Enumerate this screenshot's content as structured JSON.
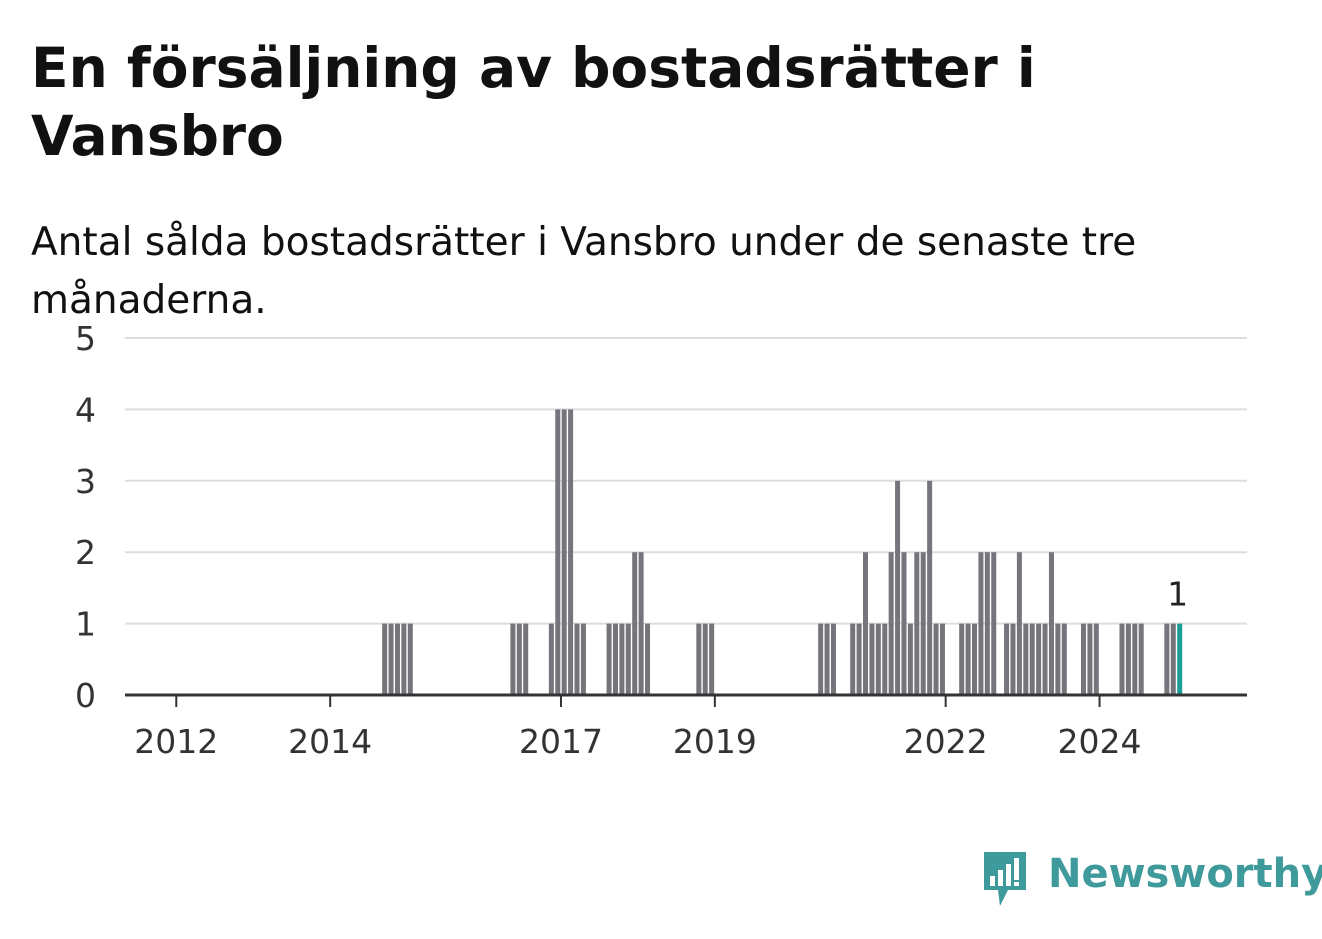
{
  "title": "En försäljning av bostadsrätter i Vansbro",
  "subtitle": "Antal sålda bostadsrätter i Vansbro under de senaste tre månaderna.",
  "brand": {
    "name": "Newsworthy",
    "color": "#3f9a9b",
    "icon": "newsworthy-logo-icon"
  },
  "colors": {
    "bar": "#76757b",
    "highlight": "#1a9e96",
    "grid": "#dddddd",
    "axis": "#333333"
  },
  "chart_data": {
    "type": "bar",
    "xlabel": "",
    "ylabel": "",
    "ylim": [
      0,
      5
    ],
    "y_ticks": [
      0,
      1,
      2,
      3,
      4,
      5
    ],
    "x_ticks": [
      "2012",
      "2014",
      "2017",
      "2019",
      "2022",
      "2024"
    ],
    "x_tick_dates": [
      "2012-01",
      "2014-01",
      "2017-01",
      "2019-01",
      "2022-01",
      "2024-01"
    ],
    "x_range": [
      "2011-05",
      "2025-12"
    ],
    "grid": true,
    "highlight_label": "1",
    "series": [
      {
        "values": [
          {
            "x": "2014-09",
            "y": 1
          },
          {
            "x": "2014-10",
            "y": 1
          },
          {
            "x": "2014-11",
            "y": 1
          },
          {
            "x": "2014-12",
            "y": 1
          },
          {
            "x": "2015-01",
            "y": 1
          },
          {
            "x": "2016-05",
            "y": 1
          },
          {
            "x": "2016-06",
            "y": 1
          },
          {
            "x": "2016-07",
            "y": 1
          },
          {
            "x": "2016-11",
            "y": 1
          },
          {
            "x": "2016-12",
            "y": 4
          },
          {
            "x": "2017-01",
            "y": 4
          },
          {
            "x": "2017-02",
            "y": 4
          },
          {
            "x": "2017-03",
            "y": 1
          },
          {
            "x": "2017-04",
            "y": 1
          },
          {
            "x": "2017-08",
            "y": 1
          },
          {
            "x": "2017-09",
            "y": 1
          },
          {
            "x": "2017-10",
            "y": 1
          },
          {
            "x": "2017-11",
            "y": 1
          },
          {
            "x": "2017-12",
            "y": 2
          },
          {
            "x": "2018-01",
            "y": 2
          },
          {
            "x": "2018-02",
            "y": 1
          },
          {
            "x": "2018-10",
            "y": 1
          },
          {
            "x": "2018-11",
            "y": 1
          },
          {
            "x": "2018-12",
            "y": 1
          },
          {
            "x": "2020-05",
            "y": 1
          },
          {
            "x": "2020-06",
            "y": 1
          },
          {
            "x": "2020-07",
            "y": 1
          },
          {
            "x": "2020-10",
            "y": 1
          },
          {
            "x": "2020-11",
            "y": 1
          },
          {
            "x": "2020-12",
            "y": 2
          },
          {
            "x": "2021-01",
            "y": 1
          },
          {
            "x": "2021-02",
            "y": 1
          },
          {
            "x": "2021-03",
            "y": 1
          },
          {
            "x": "2021-04",
            "y": 2
          },
          {
            "x": "2021-05",
            "y": 3
          },
          {
            "x": "2021-06",
            "y": 2
          },
          {
            "x": "2021-07",
            "y": 1
          },
          {
            "x": "2021-08",
            "y": 2
          },
          {
            "x": "2021-09",
            "y": 2
          },
          {
            "x": "2021-10",
            "y": 3
          },
          {
            "x": "2021-11",
            "y": 1
          },
          {
            "x": "2021-12",
            "y": 1
          },
          {
            "x": "2022-03",
            "y": 1
          },
          {
            "x": "2022-04",
            "y": 1
          },
          {
            "x": "2022-05",
            "y": 1
          },
          {
            "x": "2022-06",
            "y": 2
          },
          {
            "x": "2022-07",
            "y": 2
          },
          {
            "x": "2022-08",
            "y": 2
          },
          {
            "x": "2022-10",
            "y": 1
          },
          {
            "x": "2022-11",
            "y": 1
          },
          {
            "x": "2022-12",
            "y": 2
          },
          {
            "x": "2023-01",
            "y": 1
          },
          {
            "x": "2023-02",
            "y": 1
          },
          {
            "x": "2023-03",
            "y": 1
          },
          {
            "x": "2023-04",
            "y": 1
          },
          {
            "x": "2023-05",
            "y": 2
          },
          {
            "x": "2023-06",
            "y": 1
          },
          {
            "x": "2023-07",
            "y": 1
          },
          {
            "x": "2023-10",
            "y": 1
          },
          {
            "x": "2023-11",
            "y": 1
          },
          {
            "x": "2023-12",
            "y": 1
          },
          {
            "x": "2024-04",
            "y": 1
          },
          {
            "x": "2024-05",
            "y": 1
          },
          {
            "x": "2024-06",
            "y": 1
          },
          {
            "x": "2024-07",
            "y": 1
          },
          {
            "x": "2024-11",
            "y": 1
          },
          {
            "x": "2024-12",
            "y": 1
          },
          {
            "x": "2025-01",
            "y": 1
          }
        ]
      }
    ],
    "highlight_x": "2025-01"
  }
}
